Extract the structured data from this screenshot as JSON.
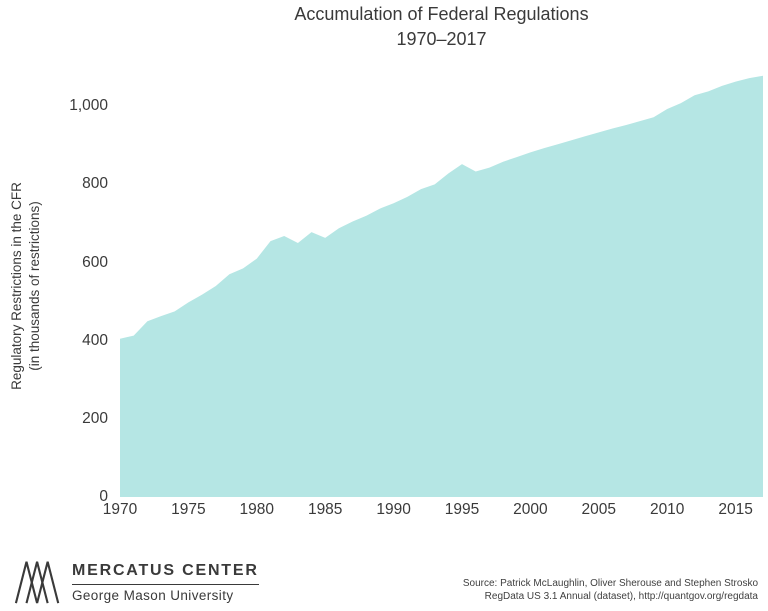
{
  "title": {
    "line1": "Accumulation of Federal Regulations",
    "line2": "1970–2017"
  },
  "y_axis": {
    "label_line1": "Regulatory Restrictions in the CFR",
    "label_line2": "(in thousands of restrictions)",
    "ticks": [
      {
        "label": "0",
        "value": 0
      },
      {
        "label": "200",
        "value": 200
      },
      {
        "label": "400",
        "value": 400
      },
      {
        "label": "600",
        "value": 600
      },
      {
        "label": "800",
        "value": 800
      },
      {
        "label": "1,000",
        "value": 1000
      }
    ]
  },
  "x_axis": {
    "ticks": [
      {
        "label": "1970",
        "value": 1970
      },
      {
        "label": "1975",
        "value": 1975
      },
      {
        "label": "1980",
        "value": 1980
      },
      {
        "label": "1985",
        "value": 1985
      },
      {
        "label": "1990",
        "value": 1990
      },
      {
        "label": "1995",
        "value": 1995
      },
      {
        "label": "2000",
        "value": 2000
      },
      {
        "label": "2005",
        "value": 2005
      },
      {
        "label": "2010",
        "value": 2010
      },
      {
        "label": "2015",
        "value": 2015
      }
    ]
  },
  "footer": {
    "org": "MERCATUS CENTER",
    "university": "George Mason University",
    "source_line1": "Source: Patrick McLaughlin, Oliver Sherouse and Stephen Strosko",
    "source_line2": "RegData US 3.1 Annual (dataset), http://quantgov.org/regdata"
  },
  "colors": {
    "area": "#b5e6e4",
    "text": "#3a3a3a"
  },
  "chart_data": {
    "type": "area",
    "title": "Accumulation of Federal Regulations 1970–2017",
    "xlabel": "",
    "ylabel": "Regulatory Restrictions in the CFR (in thousands of restrictions)",
    "grid": false,
    "legend": false,
    "xlim": [
      1970,
      2017
    ],
    "ylim": [
      0,
      1080
    ],
    "x": [
      1970,
      1971,
      1972,
      1973,
      1974,
      1975,
      1976,
      1977,
      1978,
      1979,
      1980,
      1981,
      1982,
      1983,
      1984,
      1985,
      1986,
      1987,
      1988,
      1989,
      1990,
      1991,
      1992,
      1993,
      1994,
      1995,
      1996,
      1997,
      1998,
      1999,
      2000,
      2001,
      2002,
      2003,
      2004,
      2005,
      2006,
      2007,
      2008,
      2009,
      2010,
      2011,
      2012,
      2013,
      2014,
      2015,
      2016,
      2017
    ],
    "values": [
      405,
      413,
      450,
      463,
      475,
      498,
      518,
      540,
      570,
      585,
      610,
      655,
      668,
      650,
      678,
      663,
      688,
      705,
      720,
      738,
      752,
      768,
      788,
      800,
      828,
      852,
      833,
      843,
      858,
      870,
      882,
      893,
      903,
      913,
      923,
      933,
      943,
      952,
      962,
      972,
      993,
      1008,
      1028,
      1038,
      1052,
      1063,
      1072,
      1078
    ]
  }
}
